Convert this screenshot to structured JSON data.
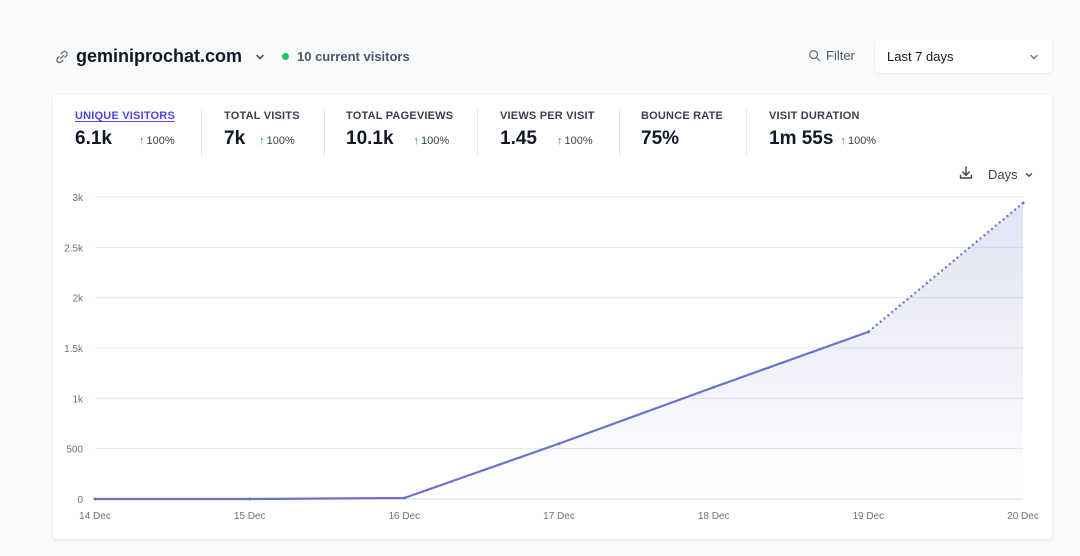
{
  "site": {
    "name": "geminiprochat.com",
    "icon": "link-icon"
  },
  "realtime": {
    "label": "10 current visitors",
    "dot_color": "#22c55e"
  },
  "toolbar": {
    "filter_label": "Filter",
    "range_label": "Last 7 days"
  },
  "metrics": [
    {
      "label": "UNIQUE VISITORS",
      "value": "6.1k",
      "change": "100%",
      "active": true
    },
    {
      "label": "TOTAL VISITS",
      "value": "7k",
      "change": "100%"
    },
    {
      "label": "TOTAL PAGEVIEWS",
      "value": "10.1k",
      "change": "100%"
    },
    {
      "label": "VIEWS PER VISIT",
      "value": "1.45",
      "change": "100%"
    },
    {
      "label": "BOUNCE RATE",
      "value": "75%",
      "change": ""
    },
    {
      "label": "VISIT DURATION",
      "value": "1m 55s",
      "change": "100%"
    }
  ],
  "chart_controls": {
    "interval_label": "Days"
  },
  "colors": {
    "accent": "#4f46e5",
    "line": "#6b72c9",
    "positive": "#16a34a"
  },
  "chart_data": {
    "type": "line",
    "categories": [
      "14 Dec",
      "15 Dec",
      "16 Dec",
      "17 Dec",
      "18 Dec",
      "19 Dec",
      "20 Dec"
    ],
    "values": [
      0,
      0,
      10,
      550,
      1110,
      1660,
      2940
    ],
    "dotted_from_index": 5,
    "ylim": [
      0,
      3000
    ],
    "yticks": [
      0,
      500,
      1000,
      1500,
      2000,
      2500,
      3000
    ],
    "ytick_labels": [
      "0",
      "500",
      "1k",
      "1.5k",
      "2k",
      "2.5k",
      "3k"
    ],
    "grid": true
  }
}
